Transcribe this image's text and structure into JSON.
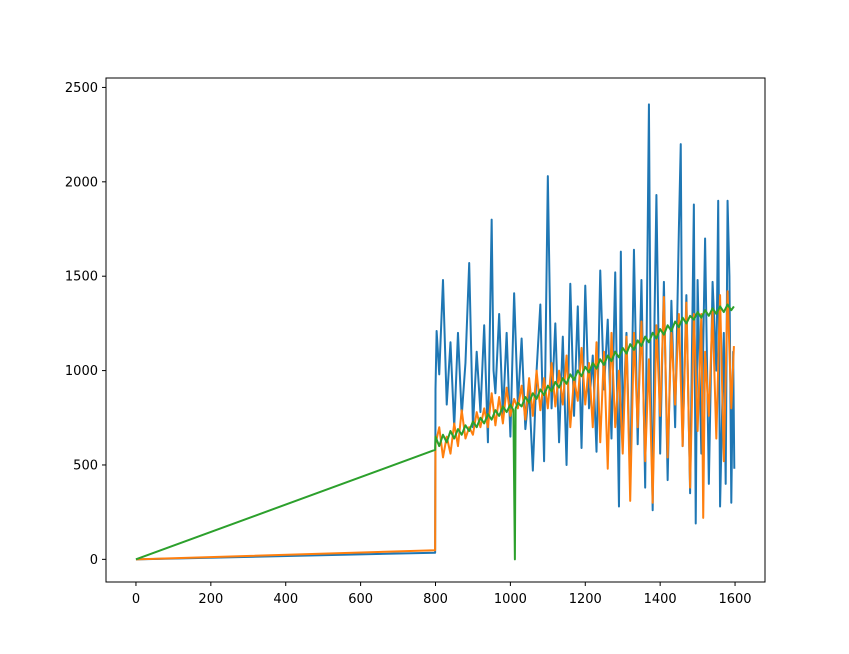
{
  "chart_data": {
    "type": "line",
    "title": "",
    "xlabel": "",
    "ylabel": "",
    "xlim": [
      -80,
      1680
    ],
    "ylim": [
      -120,
      2550
    ],
    "grid": false,
    "legend": "none",
    "x_ticks": [
      0,
      200,
      400,
      600,
      800,
      1000,
      1200,
      1400,
      1600
    ],
    "y_ticks": [
      0,
      500,
      1000,
      1500,
      2000,
      2500
    ],
    "x_tick_labels": [
      "0",
      "200",
      "400",
      "600",
      "800",
      "1000",
      "1200",
      "1400",
      "1600"
    ],
    "y_tick_labels": [
      "0",
      "500",
      "1000",
      "1500",
      "2000",
      "2500"
    ],
    "series": [
      {
        "color": "#1f77b4",
        "points": [
          [
            0,
            0
          ],
          [
            799,
            35
          ],
          [
            800,
            900
          ],
          [
            803,
            1210
          ],
          [
            810,
            980
          ],
          [
            820,
            1480
          ],
          [
            830,
            820
          ],
          [
            840,
            1150
          ],
          [
            850,
            700
          ],
          [
            860,
            1200
          ],
          [
            870,
            760
          ],
          [
            880,
            1040
          ],
          [
            890,
            1570
          ],
          [
            900,
            700
          ],
          [
            910,
            1100
          ],
          [
            920,
            780
          ],
          [
            930,
            1240
          ],
          [
            940,
            620
          ],
          [
            945,
            1200
          ],
          [
            950,
            1800
          ],
          [
            955,
            1000
          ],
          [
            960,
            880
          ],
          [
            970,
            1300
          ],
          [
            980,
            760
          ],
          [
            990,
            1200
          ],
          [
            1000,
            650
          ],
          [
            1010,
            1410
          ],
          [
            1020,
            820
          ],
          [
            1030,
            1170
          ],
          [
            1040,
            690
          ],
          [
            1050,
            900
          ],
          [
            1060,
            470
          ],
          [
            1070,
            1000
          ],
          [
            1080,
            1350
          ],
          [
            1090,
            520
          ],
          [
            1100,
            2030
          ],
          [
            1110,
            800
          ],
          [
            1120,
            1250
          ],
          [
            1130,
            620
          ],
          [
            1140,
            1180
          ],
          [
            1150,
            500
          ],
          [
            1160,
            1460
          ],
          [
            1170,
            760
          ],
          [
            1180,
            1340
          ],
          [
            1190,
            590
          ],
          [
            1200,
            1450
          ],
          [
            1210,
            800
          ],
          [
            1220,
            1080
          ],
          [
            1230,
            570
          ],
          [
            1240,
            1530
          ],
          [
            1250,
            900
          ],
          [
            1260,
            1270
          ],
          [
            1270,
            640
          ],
          [
            1280,
            1520
          ],
          [
            1290,
            280
          ],
          [
            1295,
            1630
          ],
          [
            1300,
            700
          ],
          [
            1310,
            1200
          ],
          [
            1320,
            400
          ],
          [
            1330,
            1640
          ],
          [
            1340,
            610
          ],
          [
            1350,
            1480
          ],
          [
            1360,
            380
          ],
          [
            1370,
            2410
          ],
          [
            1375,
            900
          ],
          [
            1380,
            260
          ],
          [
            1385,
            1280
          ],
          [
            1390,
            1930
          ],
          [
            1400,
            560
          ],
          [
            1410,
            1470
          ],
          [
            1420,
            420
          ],
          [
            1430,
            1370
          ],
          [
            1440,
            700
          ],
          [
            1450,
            1750
          ],
          [
            1455,
            2200
          ],
          [
            1460,
            600
          ],
          [
            1470,
            1400
          ],
          [
            1480,
            350
          ],
          [
            1490,
            1880
          ],
          [
            1495,
            190
          ],
          [
            1500,
            1480
          ],
          [
            1510,
            560
          ],
          [
            1520,
            1700
          ],
          [
            1530,
            400
          ],
          [
            1540,
            1470
          ],
          [
            1550,
            1000
          ],
          [
            1555,
            1900
          ],
          [
            1560,
            280
          ],
          [
            1570,
            1200
          ],
          [
            1575,
            400
          ],
          [
            1580,
            1900
          ],
          [
            1585,
            1500
          ],
          [
            1590,
            300
          ],
          [
            1595,
            1100
          ],
          [
            1598,
            480
          ]
        ]
      },
      {
        "color": "#ff7f0e",
        "points": [
          [
            0,
            0
          ],
          [
            799,
            48
          ],
          [
            800,
            610
          ],
          [
            810,
            700
          ],
          [
            820,
            540
          ],
          [
            830,
            650
          ],
          [
            840,
            560
          ],
          [
            850,
            720
          ],
          [
            860,
            600
          ],
          [
            870,
            790
          ],
          [
            880,
            640
          ],
          [
            890,
            700
          ],
          [
            900,
            660
          ],
          [
            910,
            780
          ],
          [
            920,
            700
          ],
          [
            930,
            800
          ],
          [
            940,
            700
          ],
          [
            950,
            880
          ],
          [
            960,
            710
          ],
          [
            970,
            860
          ],
          [
            980,
            720
          ],
          [
            990,
            910
          ],
          [
            1000,
            760
          ],
          [
            1010,
            850
          ],
          [
            1020,
            800
          ],
          [
            1030,
            920
          ],
          [
            1040,
            740
          ],
          [
            1050,
            960
          ],
          [
            1060,
            760
          ],
          [
            1070,
            1000
          ],
          [
            1080,
            790
          ],
          [
            1090,
            960
          ],
          [
            1100,
            800
          ],
          [
            1110,
            1040
          ],
          [
            1120,
            810
          ],
          [
            1130,
            1000
          ],
          [
            1140,
            820
          ],
          [
            1150,
            1080
          ],
          [
            1160,
            700
          ],
          [
            1170,
            960
          ],
          [
            1180,
            840
          ],
          [
            1190,
            1120
          ],
          [
            1200,
            820
          ],
          [
            1210,
            1040
          ],
          [
            1220,
            700
          ],
          [
            1230,
            1150
          ],
          [
            1240,
            620
          ],
          [
            1250,
            1100
          ],
          [
            1260,
            480
          ],
          [
            1270,
            1200
          ],
          [
            1280,
            700
          ],
          [
            1290,
            1000
          ],
          [
            1300,
            560
          ],
          [
            1310,
            1180
          ],
          [
            1320,
            310
          ],
          [
            1330,
            1200
          ],
          [
            1340,
            700
          ],
          [
            1350,
            1260
          ],
          [
            1360,
            520
          ],
          [
            1370,
            1060
          ],
          [
            1380,
            300
          ],
          [
            1390,
            1240
          ],
          [
            1400,
            760
          ],
          [
            1410,
            1390
          ],
          [
            1420,
            540
          ],
          [
            1430,
            1200
          ],
          [
            1440,
            820
          ],
          [
            1450,
            1300
          ],
          [
            1460,
            600
          ],
          [
            1470,
            1360
          ],
          [
            1480,
            380
          ],
          [
            1490,
            1300
          ],
          [
            1500,
            680
          ],
          [
            1510,
            1300
          ],
          [
            1515,
            220
          ],
          [
            1520,
            1100
          ],
          [
            1530,
            760
          ],
          [
            1540,
            1320
          ],
          [
            1550,
            640
          ],
          [
            1560,
            1400
          ],
          [
            1570,
            520
          ],
          [
            1580,
            1420
          ],
          [
            1590,
            800
          ],
          [
            1597,
            1130
          ]
        ]
      },
      {
        "color": "#2ca02c",
        "points": [
          [
            0,
            0
          ],
          [
            799,
            580
          ],
          [
            800,
            650
          ],
          [
            810,
            600
          ],
          [
            820,
            660
          ],
          [
            830,
            620
          ],
          [
            840,
            680
          ],
          [
            850,
            640
          ],
          [
            860,
            690
          ],
          [
            870,
            660
          ],
          [
            880,
            710
          ],
          [
            890,
            680
          ],
          [
            900,
            730
          ],
          [
            910,
            700
          ],
          [
            920,
            750
          ],
          [
            930,
            720
          ],
          [
            940,
            770
          ],
          [
            950,
            740
          ],
          [
            960,
            790
          ],
          [
            970,
            760
          ],
          [
            980,
            810
          ],
          [
            990,
            780
          ],
          [
            1000,
            820
          ],
          [
            1008,
            790
          ],
          [
            1012,
            0
          ],
          [
            1014,
            800
          ],
          [
            1020,
            830
          ],
          [
            1030,
            810
          ],
          [
            1040,
            860
          ],
          [
            1050,
            830
          ],
          [
            1060,
            880
          ],
          [
            1070,
            850
          ],
          [
            1080,
            900
          ],
          [
            1090,
            870
          ],
          [
            1100,
            920
          ],
          [
            1110,
            890
          ],
          [
            1120,
            940
          ],
          [
            1130,
            910
          ],
          [
            1140,
            960
          ],
          [
            1150,
            930
          ],
          [
            1160,
            980
          ],
          [
            1170,
            950
          ],
          [
            1180,
            1000
          ],
          [
            1190,
            970
          ],
          [
            1200,
            1020
          ],
          [
            1210,
            990
          ],
          [
            1220,
            1040
          ],
          [
            1230,
            1010
          ],
          [
            1240,
            1060
          ],
          [
            1250,
            1030
          ],
          [
            1260,
            1080
          ],
          [
            1270,
            1050
          ],
          [
            1280,
            1100
          ],
          [
            1290,
            1070
          ],
          [
            1300,
            1120
          ],
          [
            1310,
            1090
          ],
          [
            1320,
            1140
          ],
          [
            1330,
            1110
          ],
          [
            1340,
            1160
          ],
          [
            1350,
            1130
          ],
          [
            1360,
            1180
          ],
          [
            1370,
            1150
          ],
          [
            1380,
            1200
          ],
          [
            1390,
            1170
          ],
          [
            1400,
            1220
          ],
          [
            1410,
            1190
          ],
          [
            1420,
            1240
          ],
          [
            1430,
            1210
          ],
          [
            1440,
            1260
          ],
          [
            1450,
            1230
          ],
          [
            1460,
            1280
          ],
          [
            1470,
            1250
          ],
          [
            1480,
            1290
          ],
          [
            1490,
            1270
          ],
          [
            1500,
            1310
          ],
          [
            1510,
            1280
          ],
          [
            1520,
            1320
          ],
          [
            1530,
            1290
          ],
          [
            1540,
            1330
          ],
          [
            1550,
            1300
          ],
          [
            1560,
            1340
          ],
          [
            1570,
            1310
          ],
          [
            1580,
            1350
          ],
          [
            1590,
            1320
          ],
          [
            1597,
            1340
          ]
        ]
      }
    ]
  }
}
